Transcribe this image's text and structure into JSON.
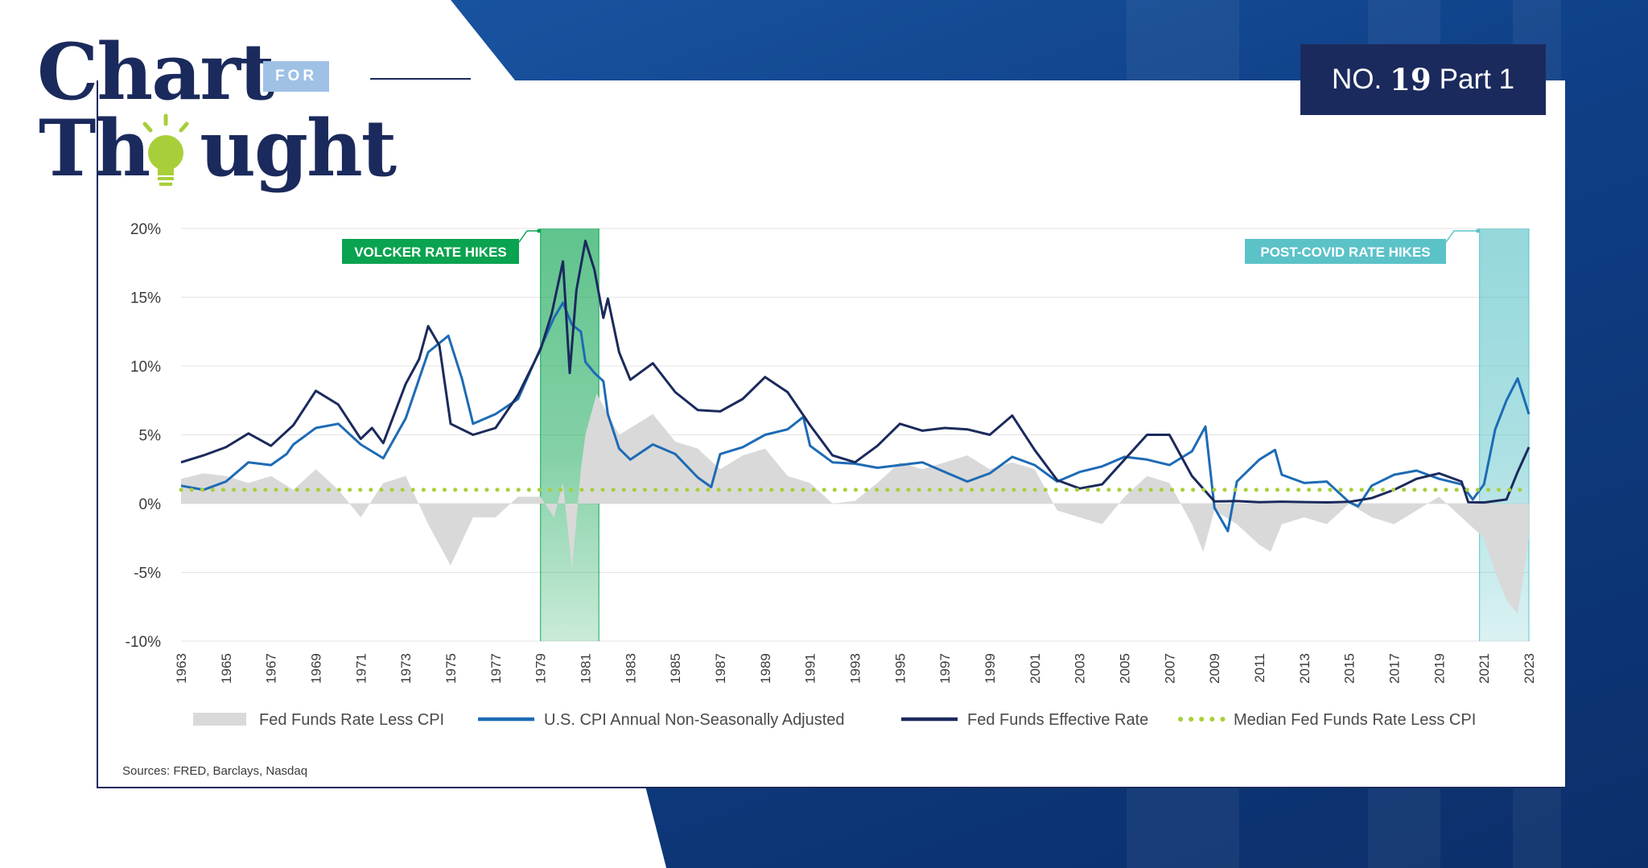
{
  "header": {
    "logo_line1": "Chart",
    "logo_for": "FOR",
    "logo_line2": "Th  ught",
    "badge_prefix": "NO.",
    "badge_number": "19",
    "badge_suffix": "Part 1"
  },
  "colors": {
    "navy": "#1b2a5c",
    "cpi_blue": "#1d6bb5",
    "spread_gray": "#d9d9d9",
    "median_green": "#a8cf3a",
    "volcker_green": "#0aa34f",
    "covid_teal": "#5bc2c8"
  },
  "chart_data": {
    "type": "line",
    "y_ticks": [
      "20%",
      "15%",
      "10%",
      "5%",
      "0%",
      "-5%",
      "-10%"
    ],
    "y_tick_values": [
      20,
      15,
      10,
      5,
      0,
      -5,
      -10
    ],
    "ylim": [
      -10,
      20
    ],
    "xlim": [
      1963,
      2023
    ],
    "x_ticks": [
      "1963",
      "1965",
      "1967",
      "1969",
      "1971",
      "1973",
      "1975",
      "1977",
      "1979",
      "1981",
      "1983",
      "1985",
      "1987",
      "1989",
      "1991",
      "1993",
      "1995",
      "1997",
      "1999",
      "2001",
      "2003",
      "2005",
      "2007",
      "2009",
      "2011",
      "2013",
      "2015",
      "2017",
      "2019",
      "2021",
      "2023"
    ],
    "highlights": [
      {
        "label": "VOLCKER RATE HIKES",
        "start": 1979.0,
        "end": 1981.6,
        "color": "#0aa34f"
      },
      {
        "label": "POST-COVID RATE HIKES",
        "start": 2020.8,
        "end": 2023.0,
        "color": "#5bc2c8"
      }
    ],
    "series": [
      {
        "name": "Fed Funds Rate Less CPI",
        "kind": "area",
        "x": [
          1963,
          1964,
          1965,
          1966,
          1967,
          1968,
          1969,
          1970,
          1971,
          1972,
          1973,
          1974,
          1975,
          1976,
          1977,
          1978,
          1979,
          1979.6,
          1980,
          1980.4,
          1980.8,
          1981,
          1981.5,
          1982,
          1982.5,
          1983,
          1984,
          1985,
          1986,
          1987,
          1988,
          1989,
          1990,
          1991,
          1992,
          1993,
          1994,
          1995,
          1996,
          1997,
          1998,
          1999,
          2000,
          2001,
          2002,
          2003,
          2004,
          2005,
          2006,
          2007,
          2008,
          2008.5,
          2009,
          2009.5,
          2010,
          2011,
          2011.5,
          2012,
          2013,
          2014,
          2015,
          2016,
          2017,
          2018,
          2019,
          2020,
          2021,
          2021.5,
          2022,
          2022.5,
          2023
        ],
        "values": [
          1.8,
          2.2,
          2.0,
          1.5,
          2.0,
          1.0,
          2.5,
          1.0,
          -1.0,
          1.5,
          2.0,
          -1.5,
          -4.5,
          -1.0,
          -1.0,
          0.5,
          0.5,
          -1.0,
          1.5,
          -4.8,
          2.5,
          5.0,
          8.0,
          6.5,
          5.0,
          5.5,
          6.5,
          4.5,
          4.0,
          2.5,
          3.5,
          4.0,
          2.0,
          1.5,
          0.0,
          0.2,
          1.5,
          3.0,
          2.5,
          3.0,
          3.5,
          2.5,
          3.0,
          2.5,
          -0.5,
          -1.0,
          -1.5,
          0.5,
          2.0,
          1.5,
          -1.5,
          -3.5,
          -0.5,
          -1.0,
          -1.5,
          -3.0,
          -3.5,
          -1.5,
          -1.0,
          -1.5,
          0.0,
          -1.0,
          -1.5,
          -0.5,
          0.5,
          -1.0,
          -2.5,
          -5.0,
          -7.0,
          -8.0,
          -2.5
        ],
        "color": "#d9d9d9"
      },
      {
        "name": "U.S. CPI Annual Non-Seasonally Adjusted",
        "kind": "line",
        "x": [
          1963,
          1964,
          1965,
          1966,
          1967,
          1967.7,
          1968,
          1969,
          1970,
          1971,
          1972,
          1973,
          1974,
          1974.9,
          1975.5,
          1976,
          1977,
          1978,
          1979,
          1979.6,
          1980,
          1980.4,
          1980.8,
          1981,
          1981.4,
          1981.8,
          1982,
          1982.5,
          1983,
          1984,
          1985,
          1986,
          1986.6,
          1987,
          1988,
          1989,
          1990,
          1990.7,
          1991,
          1992,
          1993,
          1994,
          1995,
          1996,
          1997,
          1998,
          1999,
          2000,
          2001,
          2002,
          2003,
          2004,
          2005,
          2006,
          2007,
          2008,
          2008.6,
          2009,
          2009.6,
          2010,
          2011,
          2011.7,
          2012,
          2013,
          2014,
          2015,
          2015.4,
          2016,
          2017,
          2018,
          2019,
          2020,
          2020.5,
          2021,
          2021.5,
          2022,
          2022.5,
          2023
        ],
        "values": [
          1.3,
          1.0,
          1.6,
          3.0,
          2.8,
          3.6,
          4.3,
          5.5,
          5.8,
          4.3,
          3.3,
          6.2,
          11.0,
          12.2,
          9.1,
          5.8,
          6.5,
          7.6,
          11.3,
          13.5,
          14.6,
          13.0,
          12.5,
          10.3,
          9.5,
          8.9,
          6.5,
          4.0,
          3.2,
          4.3,
          3.6,
          1.9,
          1.2,
          3.6,
          4.1,
          5.0,
          5.4,
          6.3,
          4.2,
          3.0,
          2.9,
          2.6,
          2.8,
          3.0,
          2.3,
          1.6,
          2.2,
          3.4,
          2.8,
          1.6,
          2.3,
          2.7,
          3.4,
          3.2,
          2.8,
          3.8,
          5.6,
          -0.3,
          -2.0,
          1.6,
          3.2,
          3.9,
          2.1,
          1.5,
          1.6,
          0.1,
          -0.2,
          1.3,
          2.1,
          2.4,
          1.8,
          1.4,
          0.3,
          1.4,
          5.4,
          7.5,
          9.1,
          6.5
        ],
        "color": "#1d6bb5"
      },
      {
        "name": "Fed Funds Effective Rate",
        "kind": "line",
        "x": [
          1963,
          1964,
          1965,
          1966,
          1967,
          1968,
          1969,
          1970,
          1971,
          1971.5,
          1972,
          1973,
          1973.6,
          1974,
          1974.5,
          1975,
          1976,
          1977,
          1978,
          1979,
          1979.5,
          1980,
          1980.3,
          1980.6,
          1981,
          1981.4,
          1981.8,
          1982,
          1982.5,
          1983,
          1984,
          1985,
          1986,
          1987,
          1988,
          1989,
          1990,
          1991,
          1992,
          1993,
          1994,
          1995,
          1996,
          1997,
          1998,
          1999,
          2000,
          2001,
          2002,
          2003,
          2004,
          2005,
          2006,
          2007,
          2008,
          2009,
          2010,
          2011,
          2012,
          2013,
          2014,
          2015,
          2016,
          2017,
          2018,
          2019,
          2020,
          2020.3,
          2021,
          2022,
          2022.5,
          2023
        ],
        "values": [
          3.0,
          3.5,
          4.1,
          5.1,
          4.2,
          5.7,
          8.2,
          7.2,
          4.7,
          5.5,
          4.4,
          8.7,
          10.5,
          12.9,
          11.5,
          5.8,
          5.0,
          5.5,
          7.9,
          11.2,
          13.8,
          17.6,
          9.5,
          15.5,
          19.1,
          17.0,
          13.5,
          14.9,
          11.0,
          9.0,
          10.2,
          8.1,
          6.8,
          6.7,
          7.6,
          9.2,
          8.1,
          5.7,
          3.5,
          3.0,
          4.2,
          5.8,
          5.3,
          5.5,
          5.4,
          5.0,
          6.4,
          3.9,
          1.7,
          1.1,
          1.4,
          3.2,
          5.0,
          5.0,
          2.0,
          0.16,
          0.18,
          0.1,
          0.14,
          0.11,
          0.09,
          0.13,
          0.4,
          1.0,
          1.8,
          2.2,
          1.6,
          0.1,
          0.08,
          0.3,
          2.3,
          4.1
        ],
        "color": "#1b2a5c"
      },
      {
        "name": "Median Fed Funds Rate Less CPI",
        "kind": "dotted",
        "x": [
          1963,
          2023
        ],
        "values": [
          1.0,
          1.0
        ],
        "color": "#a8cf3a"
      }
    ],
    "source": "Sources: FRED, Barclays, Nasdaq"
  }
}
